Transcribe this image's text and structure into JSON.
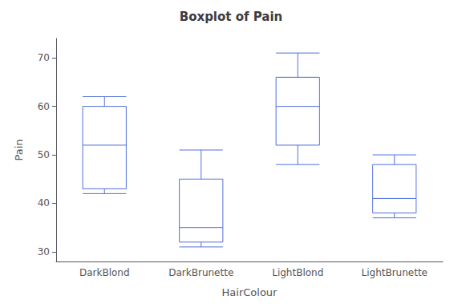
{
  "chart_data": {
    "type": "boxplot",
    "title": "Boxplot of Pain",
    "xlabel": "HairColour",
    "ylabel": "Pain",
    "categories": [
      "DarkBlond",
      "DarkBrunette",
      "LightBlond",
      "LightBrunette"
    ],
    "values": [
      [
        42,
        43,
        52,
        60,
        62
      ],
      [
        31,
        32,
        35,
        45,
        51
      ],
      [
        48,
        52,
        60,
        66,
        71
      ],
      [
        37,
        38,
        41,
        48,
        50
      ]
    ],
    "ylim": [
      28,
      74
    ],
    "yticks": [
      30,
      40,
      50,
      60,
      70
    ],
    "grid": false
  }
}
